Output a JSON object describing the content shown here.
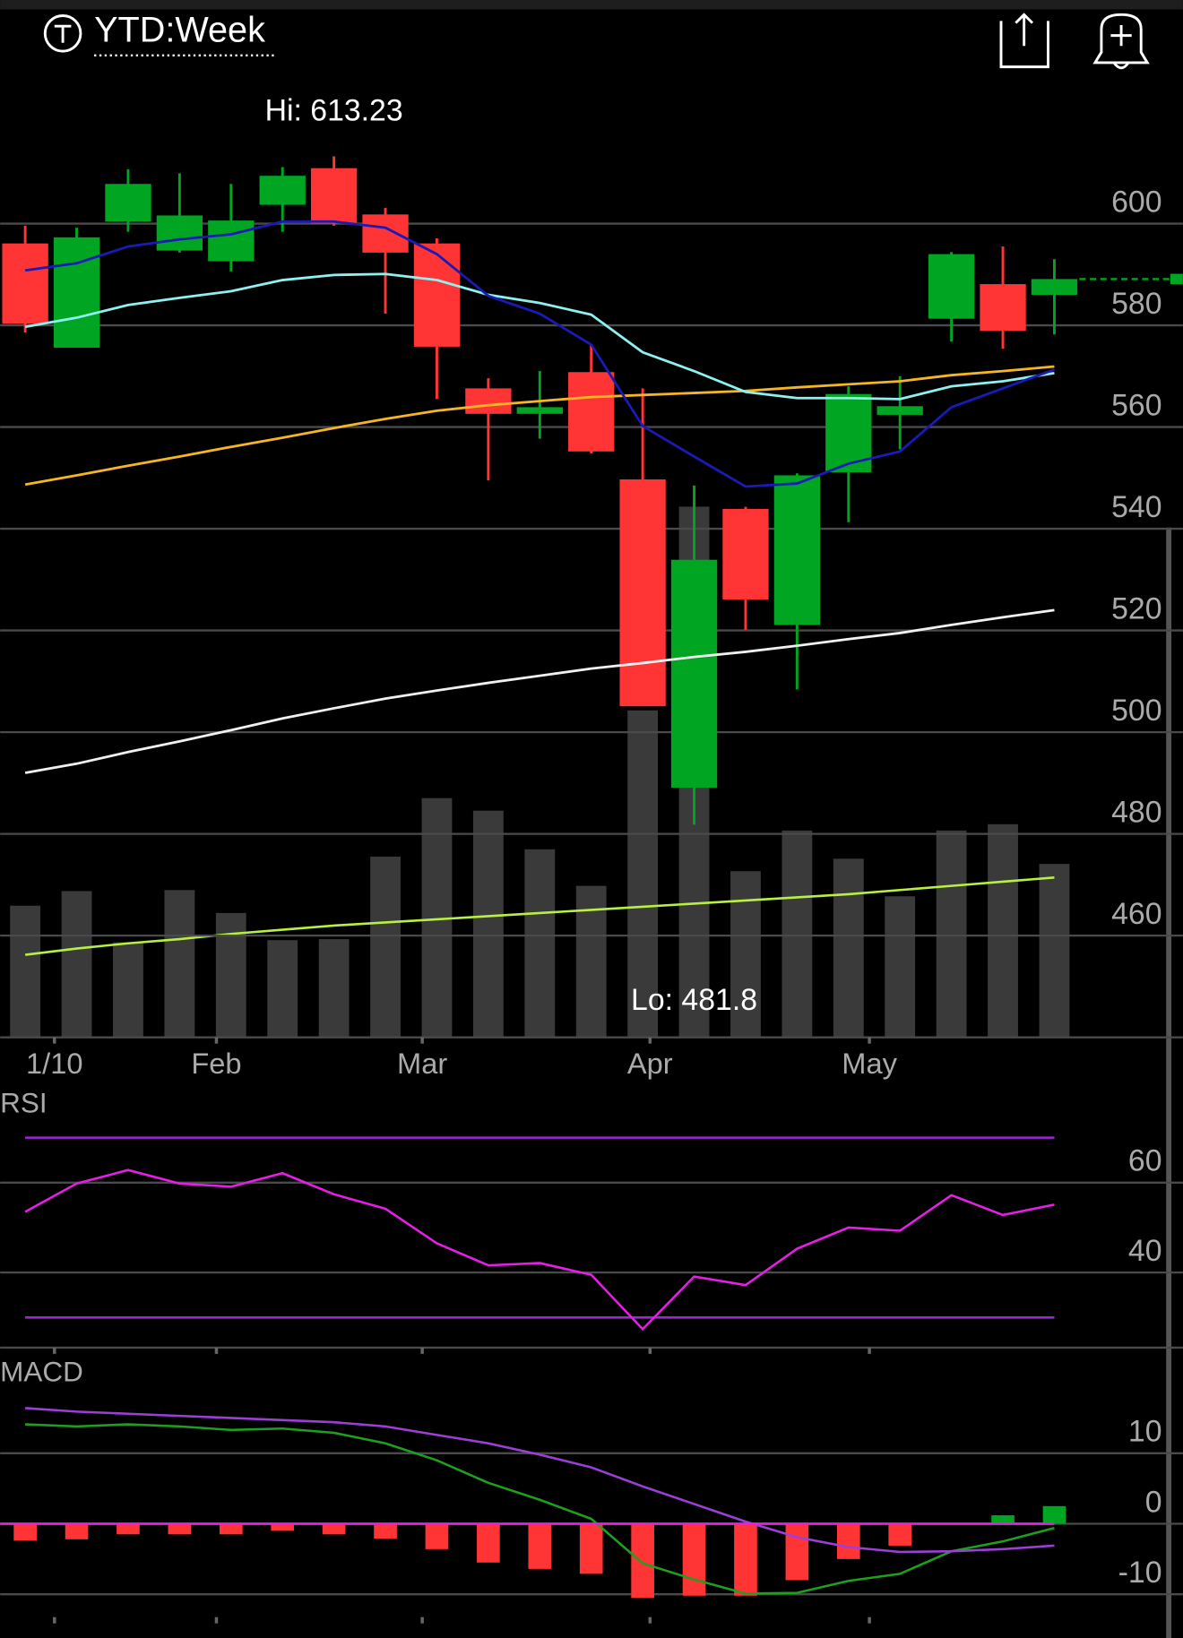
{
  "header": {
    "title": "YTD:Week"
  },
  "chart_data": [
    {
      "type": "candlestick",
      "open": [
        596.1,
        575.6,
        600.4,
        594.7,
        592.6,
        603.7,
        610.9,
        601.8,
        596.1,
        567.6,
        562.6,
        570.8,
        549.7,
        489.1,
        543.9,
        521.1,
        551.1,
        562.4,
        581.3,
        588.1,
        586.0
      ],
      "high": [
        599.6,
        599.2,
        610.7,
        609.9,
        607.8,
        611.1,
        613.23,
        603.1,
        597.1,
        569.6,
        571.0,
        576.2,
        567.6,
        548.5,
        544.3,
        550.9,
        568.0,
        570.0,
        594.4,
        595.5,
        593.0
      ],
      "low": [
        578.6,
        575.6,
        598.4,
        594.3,
        590.6,
        598.4,
        599.6,
        582.3,
        565.5,
        549.5,
        557.7,
        554.8,
        505.1,
        481.8,
        520.1,
        508.4,
        541.3,
        555.6,
        576.8,
        575.4,
        578.2
      ],
      "close": [
        580.3,
        597.3,
        607.8,
        601.6,
        600.6,
        609.4,
        600.0,
        594.3,
        575.8,
        562.6,
        563.9,
        555.2,
        505.1,
        533.9,
        526.1,
        550.5,
        566.5,
        564.1,
        594.0,
        578.9,
        589.1
      ],
      "up_color": "#00a522",
      "down_color": "#ff3535",
      "xtick_labels": [
        "1/10",
        "Feb",
        "Mar",
        "Apr",
        "May"
      ],
      "ylim": [
        440,
        630
      ],
      "yticks": [
        460,
        480,
        500,
        520,
        540,
        560,
        580,
        600
      ],
      "grid": true,
      "annotations": {
        "high": "Hi: 613.23",
        "low": "Lo: 481.8"
      },
      "series": [
        {
          "color": "#f0f0f0",
          "values": [
            492.0,
            493.8,
            496.1,
            498.2,
            500.4,
            502.7,
            504.7,
            506.6,
            508.2,
            509.7,
            511.1,
            512.5,
            513.6,
            514.8,
            515.8,
            517.0,
            518.3,
            519.5,
            521.1,
            522.6,
            524.0
          ]
        },
        {
          "color": "#f5b623",
          "values": [
            548.7,
            550.5,
            552.4,
            554.2,
            556.1,
            557.9,
            559.8,
            561.6,
            563.2,
            564.3,
            565.1,
            565.9,
            566.3,
            566.7,
            567.1,
            567.8,
            568.4,
            569.0,
            570.2,
            571.0,
            571.9
          ]
        },
        {
          "color": "#8ff0f0",
          "values": [
            579.7,
            581.5,
            584.0,
            585.4,
            586.7,
            588.9,
            589.9,
            590.1,
            588.9,
            586.0,
            584.4,
            582.1,
            574.7,
            571.0,
            566.9,
            565.7,
            565.7,
            565.5,
            568.0,
            569.0,
            570.6
          ]
        },
        {
          "color": "#1a1ab8",
          "values": [
            590.8,
            592.2,
            595.5,
            596.9,
            597.9,
            600.4,
            600.4,
            599.2,
            594.0,
            585.8,
            582.3,
            576.2,
            560.2,
            554.2,
            548.3,
            548.9,
            552.8,
            555.2,
            563.9,
            567.6,
            571.3
          ]
        }
      ],
      "volume": {
        "color": "#3a3a3a",
        "ylim": [
          0,
          925
        ],
        "values": [
          126,
          140,
          91,
          141,
          119,
          93,
          94,
          173,
          229,
          217,
          180,
          145,
          313,
          508,
          159,
          198,
          171,
          135,
          198,
          204,
          166
        ],
        "ma": {
          "color": "#b8f040",
          "values": [
            79,
            85,
            90,
            94,
            99,
            103,
            107,
            110,
            113,
            116,
            119,
            122,
            125,
            128,
            131,
            134,
            137,
            141,
            145,
            149,
            153
          ]
        }
      }
    },
    {
      "type": "line",
      "title": "RSI",
      "ylim": [
        23.3,
        81.4
      ],
      "yticks": [
        40,
        60
      ],
      "grid": true,
      "bands": [
        30,
        70
      ],
      "band_color": "#9a2ad0",
      "series": [
        {
          "color": "#e81ee8",
          "values": [
            53.5,
            59.8,
            62.8,
            59.8,
            59.1,
            62.1,
            57.4,
            54.2,
            46.5,
            41.6,
            42.1,
            39.5,
            27.4,
            39.1,
            37.2,
            45.3,
            50.0,
            49.3,
            57.2,
            52.8,
            55.1
          ]
        }
      ]
    },
    {
      "type": "macd",
      "title": "MACD",
      "ylim": [
        -16.2,
        23.5
      ],
      "yticks": [
        -10,
        0,
        10
      ],
      "grid": true,
      "zero_color": "#e81ee8",
      "up_color": "#00a522",
      "down_color": "#ff3535",
      "histogram": [
        -2.4,
        -2.2,
        -1.5,
        -1.5,
        -1.5,
        -1.0,
        -1.5,
        -2.1,
        -3.6,
        -5.5,
        -6.4,
        -7.1,
        -10.5,
        -10.2,
        -10.2,
        -8.0,
        -5.0,
        -3.1,
        0,
        1.2,
        2.5
      ],
      "series": [
        {
          "color": "#1f9e1f",
          "values": [
            14.1,
            13.8,
            14.1,
            13.8,
            13.3,
            13.5,
            12.9,
            11.4,
            9.0,
            5.8,
            3.4,
            0.7,
            -5.6,
            -7.9,
            -9.9,
            -9.8,
            -8.1,
            -7.1,
            -3.9,
            -2.5,
            -0.6
          ]
        },
        {
          "color": "#9c3fd6",
          "values": [
            16.4,
            15.9,
            15.6,
            15.3,
            15.0,
            14.7,
            14.4,
            13.8,
            12.6,
            11.4,
            9.8,
            8.0,
            5.3,
            2.8,
            0.3,
            -1.9,
            -3.3,
            -4.0,
            -3.9,
            -3.6,
            -3.1
          ]
        }
      ]
    }
  ]
}
